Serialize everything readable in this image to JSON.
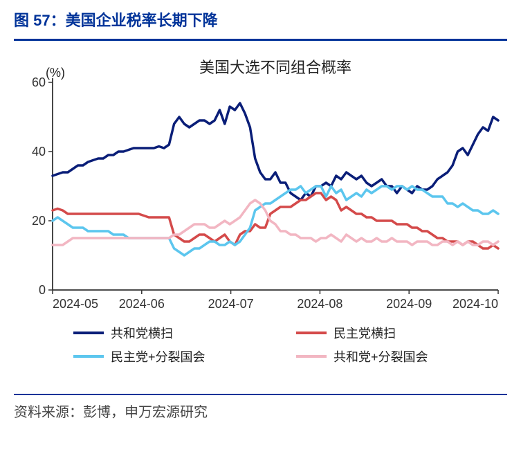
{
  "header": {
    "title": "图 57：美国企业税率长期下降"
  },
  "footer": {
    "source": "资料来源：彭博，申万宏源研究"
  },
  "chart": {
    "type": "line",
    "title": "美国大选不同组合概率",
    "title_fontsize": 22,
    "title_color": "#222222",
    "ylabel": "(%)",
    "ylabel_fontsize": 18,
    "ylabel_color": "#222222",
    "background_color": "#ffffff",
    "ylim": [
      0,
      60
    ],
    "ytick_step": 20,
    "yticks": [
      0,
      20,
      40,
      60
    ],
    "xticks": [
      "2024-05",
      "2024-06",
      "2024-07",
      "2024-08",
      "2024-09",
      "2024-10"
    ],
    "axis_color": "#333333",
    "tick_color": "#333333",
    "tick_fontsize": 18,
    "line_width": 3.5,
    "legend": {
      "position": "bottom",
      "fontsize": 18,
      "marker_width": 44,
      "marker_height": 4,
      "items": [
        {
          "label": "共和党横扫",
          "color": "#0a1e78"
        },
        {
          "label": "民主党横扫",
          "color": "#d44a4a"
        },
        {
          "label": "民主党+分裂国会",
          "color": "#5cc6ee"
        },
        {
          "label": "共和党+分裂国会",
          "color": "#f2b6c2"
        }
      ]
    },
    "series": [
      {
        "name": "共和党横扫",
        "color": "#0a1e78",
        "values": [
          33,
          33.5,
          34,
          34,
          35,
          36,
          36,
          37,
          37.5,
          38,
          38,
          39,
          39,
          40,
          40,
          40.5,
          41,
          41,
          41,
          41,
          41,
          41.5,
          41,
          42,
          48,
          50,
          48,
          47,
          48,
          49,
          49,
          48,
          49,
          52,
          48,
          53,
          52,
          54,
          51,
          47,
          38,
          34,
          32,
          32,
          34,
          31,
          31,
          28,
          27,
          26,
          28,
          27,
          30,
          30,
          31,
          30,
          33,
          32,
          34,
          33,
          32,
          33,
          31,
          30,
          31,
          32,
          30,
          30,
          28,
          30,
          29,
          28,
          30,
          29,
          29,
          30,
          32,
          33,
          34,
          36,
          40,
          41,
          39,
          42,
          45,
          47,
          46,
          50,
          49
        ]
      },
      {
        "name": "民主党横扫",
        "color": "#d44a4a",
        "values": [
          23,
          23.5,
          23,
          22,
          22,
          22,
          22,
          22,
          22,
          22,
          22,
          22,
          22,
          22,
          22,
          22,
          22,
          22,
          21.5,
          21,
          21,
          21,
          21,
          21,
          16,
          15,
          14,
          14,
          15,
          16,
          16,
          15,
          14,
          15,
          16,
          14,
          13,
          16,
          17,
          17,
          19,
          18,
          18,
          22,
          23,
          24,
          24,
          24,
          25,
          26,
          26,
          27,
          28,
          28,
          26,
          27,
          26,
          23,
          24,
          23,
          22,
          22,
          21,
          21,
          20,
          20,
          20,
          20,
          19,
          19,
          19,
          18,
          18,
          17,
          17,
          16,
          15,
          15,
          14,
          14,
          14,
          13,
          14,
          14,
          13,
          12,
          12,
          13,
          12
        ]
      },
      {
        "name": "民主党+分裂国会",
        "color": "#5cc6ee",
        "values": [
          20,
          21,
          20,
          19,
          18,
          18,
          18,
          17,
          17,
          17,
          17,
          17,
          16,
          16,
          16,
          15,
          15,
          15,
          15,
          15,
          15,
          15,
          15,
          15,
          12,
          11,
          10,
          11,
          12,
          12,
          13,
          14,
          14,
          13,
          13,
          14,
          13,
          14,
          16,
          18,
          23,
          24,
          25,
          25,
          26,
          27,
          28,
          29,
          29,
          30,
          28,
          29,
          30,
          30,
          27,
          30,
          28,
          29,
          26,
          27,
          28,
          27,
          29,
          28,
          29,
          30,
          30,
          29,
          30,
          30,
          29,
          30,
          29,
          29,
          28,
          27,
          27,
          27,
          25,
          25,
          24,
          25,
          24,
          23,
          23,
          22,
          22,
          23,
          22
        ]
      },
      {
        "name": "共和党+分裂国会",
        "color": "#f2b6c2",
        "values": [
          13,
          13,
          13,
          14,
          15,
          15,
          15,
          15,
          15,
          15,
          15,
          15,
          15,
          15,
          15,
          15,
          15,
          15,
          15,
          15,
          15,
          15,
          15,
          15,
          16,
          16,
          17,
          18,
          19,
          19,
          19,
          18,
          18,
          19,
          20,
          19,
          20,
          21,
          23,
          25,
          26,
          25,
          23,
          20,
          19,
          17,
          17,
          16,
          16,
          15,
          15,
          15,
          14,
          15,
          15,
          16,
          15,
          14,
          16,
          15,
          14,
          15,
          14,
          14,
          15,
          14,
          14,
          15,
          14,
          14,
          14,
          13,
          14,
          14,
          14,
          13,
          13,
          14,
          14,
          13,
          14,
          13,
          14,
          13,
          13,
          14,
          14,
          13,
          14
        ]
      }
    ]
  }
}
